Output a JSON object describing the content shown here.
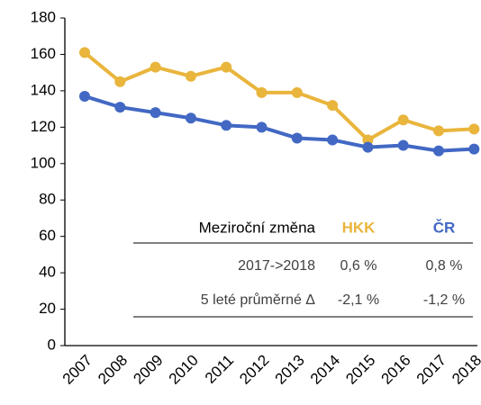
{
  "chart_data": {
    "type": "line",
    "categories": [
      "2007",
      "2008",
      "2009",
      "2010",
      "2011",
      "2012",
      "2013",
      "2014",
      "2015",
      "2016",
      "2017",
      "2018"
    ],
    "series": [
      {
        "name": "HKK",
        "color": "#e9b53c",
        "values": [
          161,
          145,
          153,
          148,
          153,
          139,
          139,
          132,
          113,
          124,
          118,
          119
        ]
      },
      {
        "name": "ČR",
        "color": "#4268c4",
        "values": [
          137,
          131,
          128,
          125,
          121,
          120,
          114,
          113,
          109,
          110,
          107,
          108
        ]
      }
    ],
    "ylim": [
      0,
      180
    ],
    "yticks": [
      0,
      20,
      40,
      60,
      80,
      100,
      120,
      140,
      160,
      180
    ],
    "grid": false,
    "table": {
      "header": [
        "Meziroční změna",
        "HKK",
        "ČR"
      ],
      "rows": [
        [
          "2017->2018",
          "0,6 %",
          "0,8 %"
        ],
        [
          "5 leté průměrné Δ",
          "-2,1 %",
          "-1,2 %"
        ]
      ]
    }
  }
}
